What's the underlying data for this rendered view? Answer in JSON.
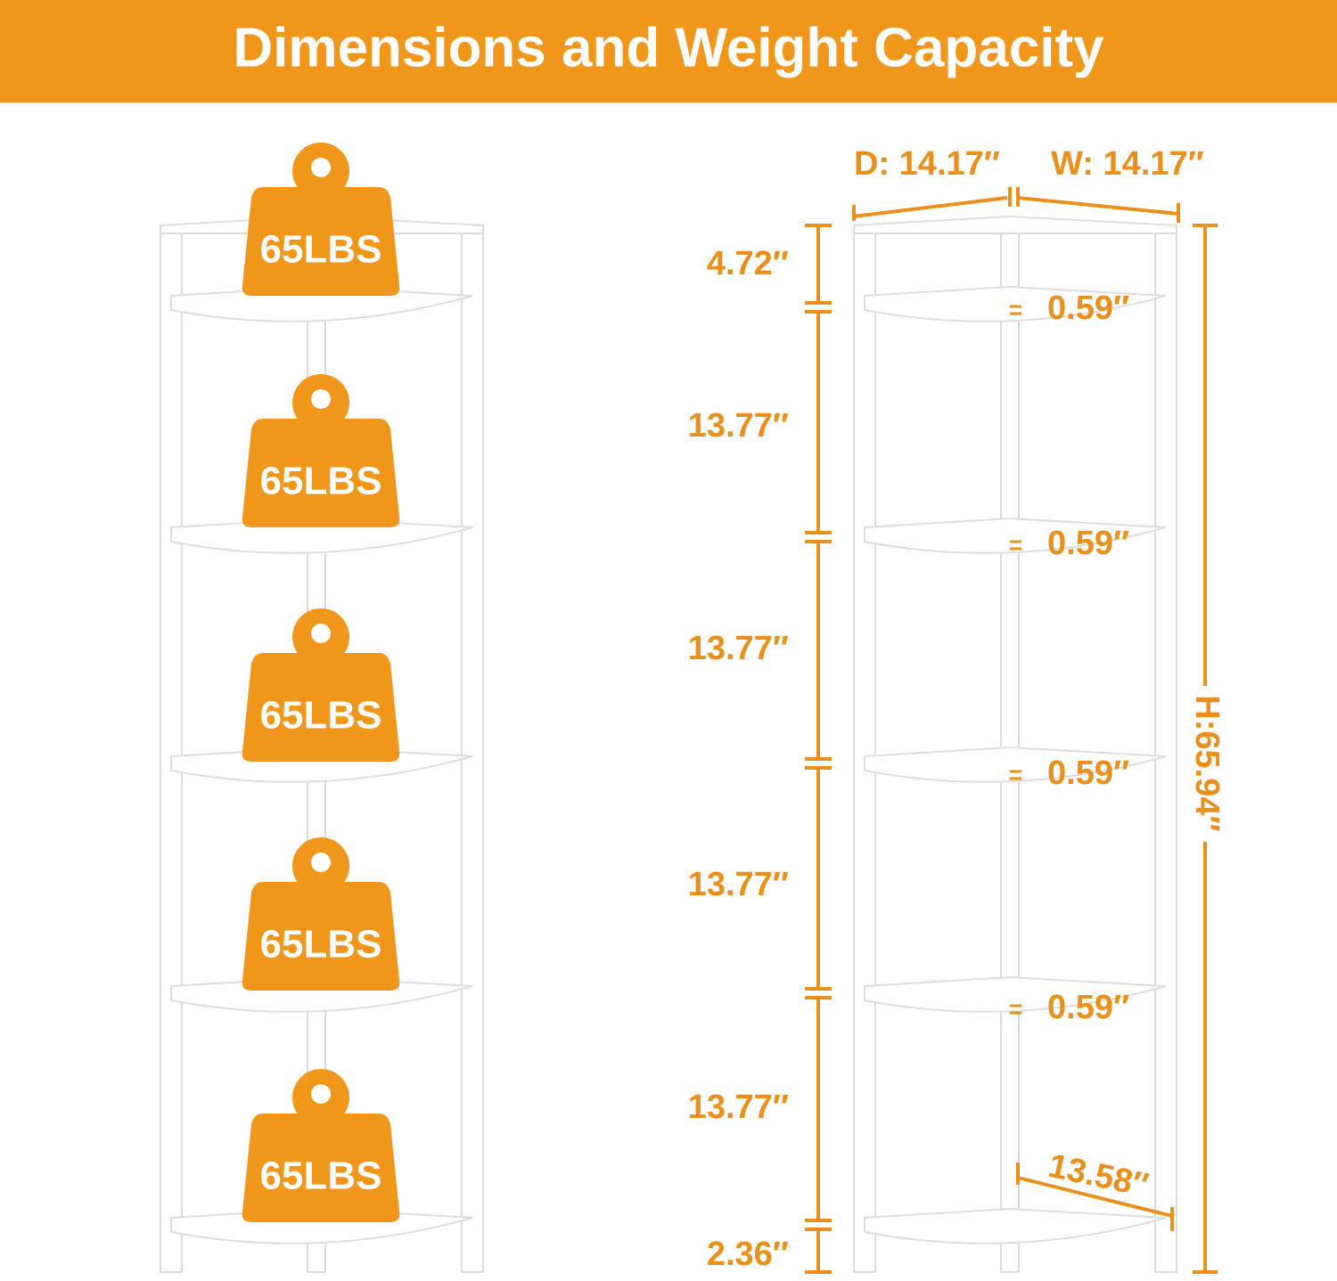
{
  "header": {
    "title": "Dimensions and Weight Capacity"
  },
  "weights": [
    "65LBS",
    "65LBS",
    "65LBS",
    "65LBS",
    "65LBS"
  ],
  "dimensions": {
    "depth": "D: 14.17″",
    "width": "W: 14.17″",
    "height": "H:65.94″",
    "gaps": [
      "4.72″",
      "13.77″",
      "13.77″",
      "13.77″",
      "13.77″",
      "2.36″"
    ],
    "shelf_thickness": [
      "0.59″",
      "0.59″",
      "0.59″",
      "0.59″"
    ],
    "shelf_edge": "13.58″"
  }
}
